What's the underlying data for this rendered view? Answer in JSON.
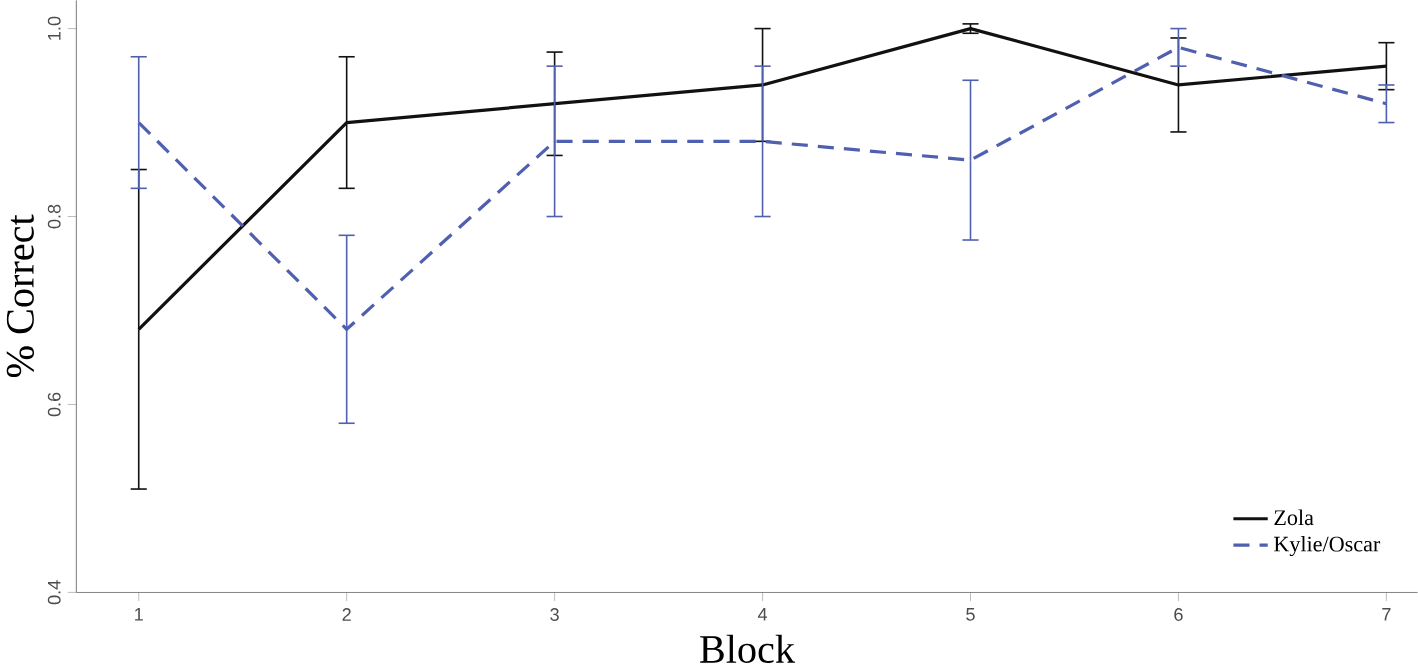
{
  "chart_data": {
    "type": "line",
    "xlabel": "Block",
    "ylabel": "% Correct",
    "x": [
      1,
      2,
      3,
      4,
      5,
      6,
      7
    ],
    "xlim": [
      0.7,
      7.15
    ],
    "xticks": [
      1,
      2,
      3,
      4,
      5,
      6,
      7
    ],
    "ylim": [
      0.4,
      1.03
    ],
    "yticks": [
      0.4,
      0.6,
      0.8,
      {
        "value": 1.0,
        "label": "1.0"
      }
    ],
    "legend": "bottom right",
    "grid": false,
    "marker": "none",
    "series": [
      {
        "name": "Zola",
        "color": "#111111",
        "line_style": "solid",
        "values": [
          0.68,
          0.9,
          0.92,
          0.94,
          1.0,
          0.94,
          0.96
        ],
        "errors": [
          0.17,
          0.07,
          0.055,
          0.06,
          0.005,
          0.05,
          0.025
        ]
      },
      {
        "name": "Kylie/Oscar",
        "color": "#5060b0",
        "line_style": "dashed",
        "values": [
          0.9,
          0.68,
          0.88,
          0.88,
          0.86,
          0.98,
          0.92
        ],
        "errors": [
          0.07,
          0.1,
          0.08,
          0.08,
          0.085,
          0.02,
          0.02
        ]
      }
    ]
  }
}
